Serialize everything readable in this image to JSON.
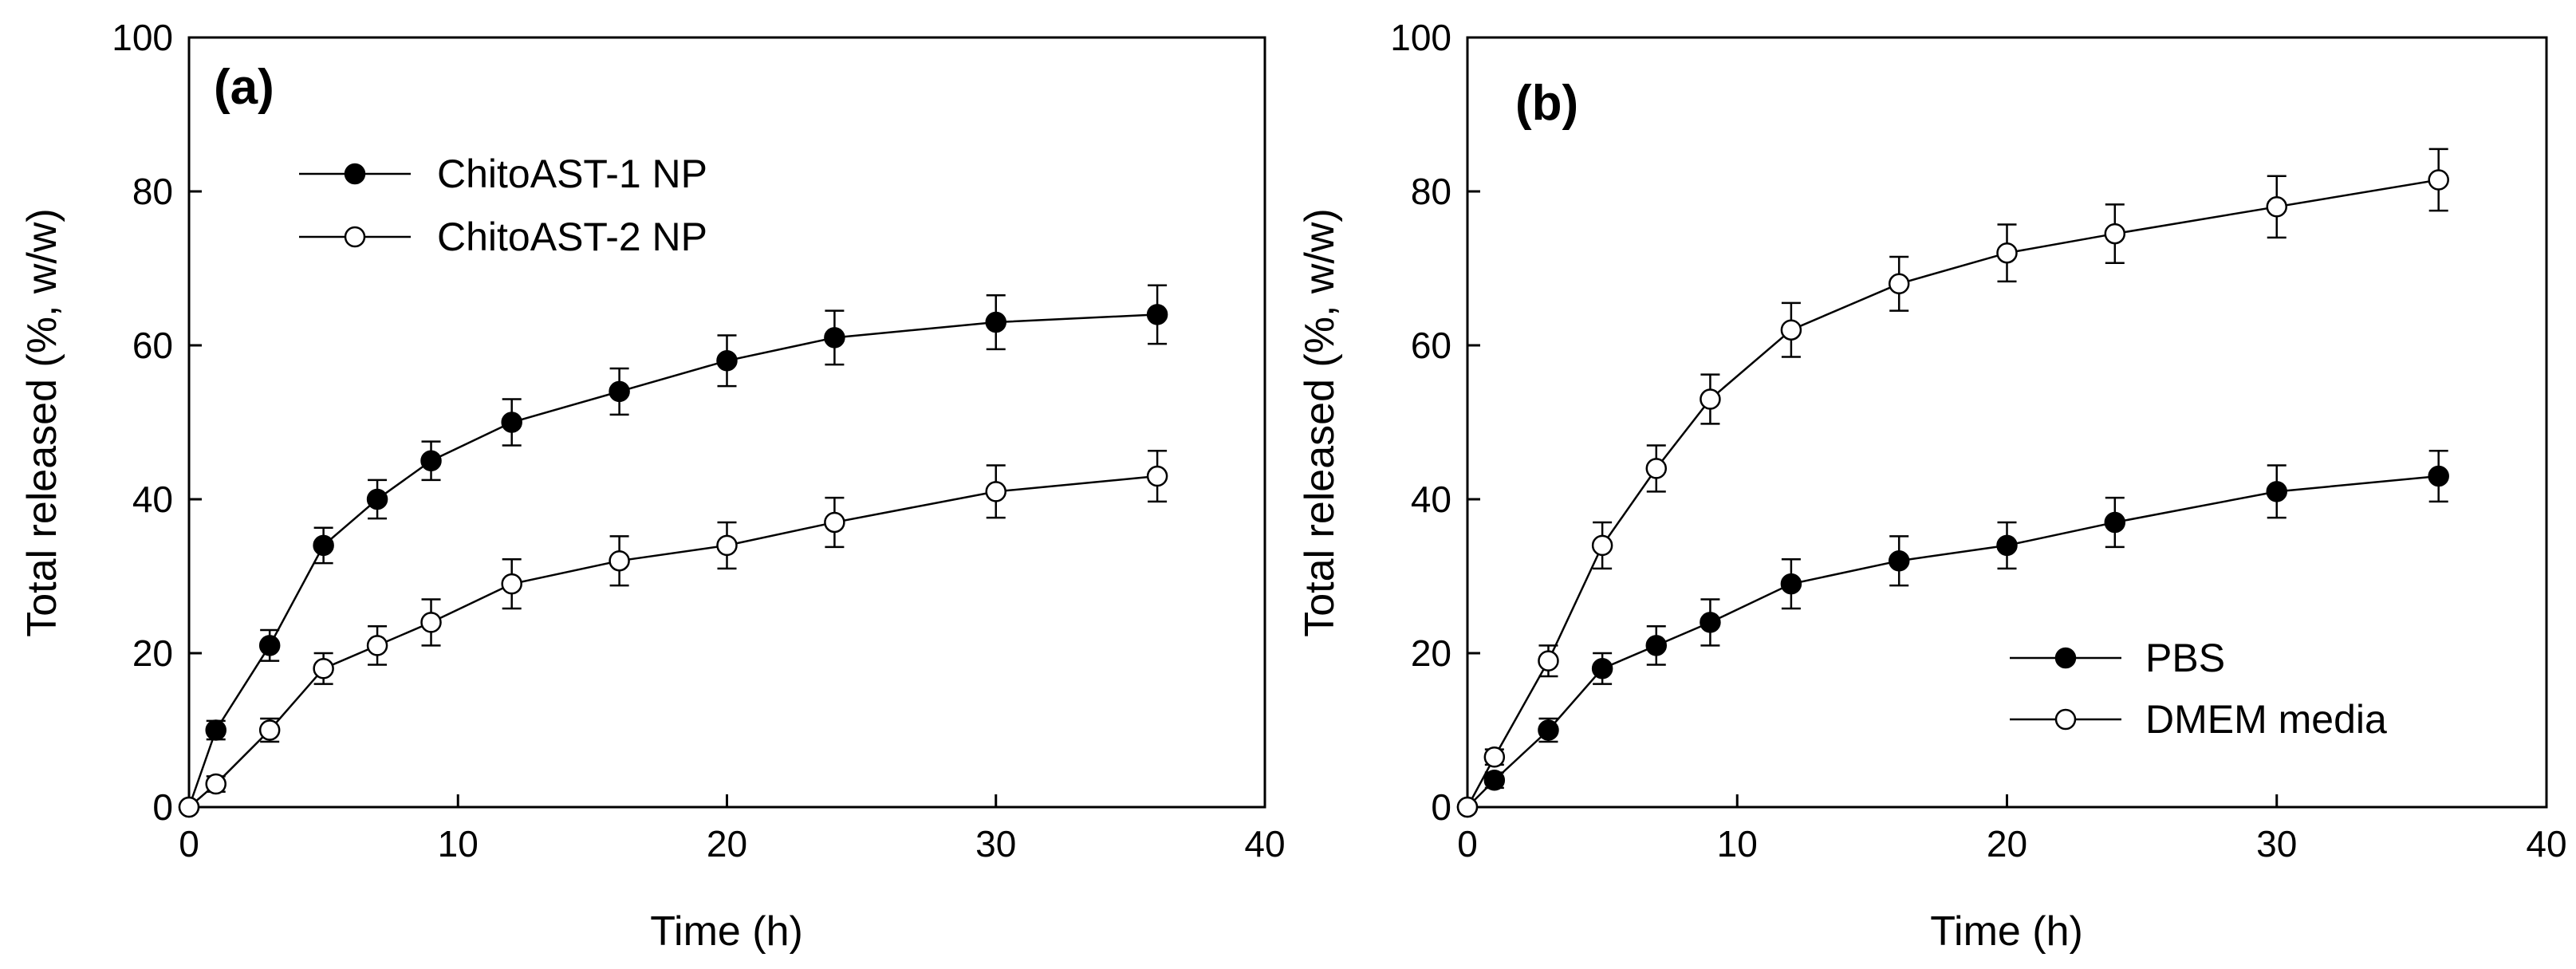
{
  "chart_data": [
    {
      "type": "line",
      "panel_label": "(a)",
      "xlabel": "Time (h)",
      "ylabel": "Total released (%, w/w)",
      "xlim": [
        0,
        40
      ],
      "ylim": [
        0,
        100
      ],
      "xticks": [
        "0",
        "10",
        "20",
        "30",
        "40"
      ],
      "yticks": [
        "0",
        "20",
        "40",
        "60",
        "80",
        "100"
      ],
      "grid": false,
      "legend_position": "top-left",
      "x": [
        0,
        1,
        3,
        5,
        7,
        9,
        12,
        16,
        20,
        24,
        30,
        36
      ],
      "series": [
        {
          "name": "ChitoAST-1 NP",
          "marker": "filled-circle",
          "color": "#000000",
          "values": [
            0,
            10,
            21,
            34,
            40,
            45,
            50,
            54,
            58,
            61,
            63,
            64
          ],
          "errors": [
            0,
            1.2,
            2,
            2.3,
            2.5,
            2.5,
            3,
            3,
            3.3,
            3.5,
            3.5,
            3.8
          ]
        },
        {
          "name": "ChitoAST-2 NP",
          "marker": "open-circle",
          "color": "#000000",
          "values": [
            0,
            3,
            10,
            18,
            21,
            24,
            29,
            32,
            34,
            37,
            41,
            43
          ],
          "errors": [
            0,
            1,
            1.5,
            2,
            2.5,
            3,
            3.2,
            3.2,
            3,
            3.2,
            3.4,
            3.3
          ]
        }
      ]
    },
    {
      "type": "line",
      "panel_label": "(b)",
      "xlabel": "Time (h)",
      "ylabel": "Total released (%, w/w)",
      "xlim": [
        0,
        40
      ],
      "ylim": [
        0,
        100
      ],
      "xticks": [
        "0",
        "10",
        "20",
        "30",
        "40"
      ],
      "yticks": [
        "0",
        "20",
        "40",
        "60",
        "80",
        "100"
      ],
      "grid": false,
      "legend_position": "bottom-right",
      "x": [
        0,
        1,
        3,
        5,
        7,
        9,
        12,
        16,
        20,
        24,
        30,
        36
      ],
      "series": [
        {
          "name": "PBS",
          "marker": "filled-circle",
          "color": "#000000",
          "values": [
            0,
            3.5,
            10,
            18,
            21,
            24,
            29,
            32,
            34,
            37,
            41,
            43
          ],
          "errors": [
            0,
            1,
            1.5,
            2,
            2.5,
            3,
            3.2,
            3.2,
            3,
            3.2,
            3.4,
            3.3
          ]
        },
        {
          "name": "DMEM media",
          "marker": "open-circle",
          "color": "#000000",
          "values": [
            0,
            6.5,
            19,
            34,
            44,
            53,
            62,
            68,
            72,
            74.5,
            78,
            81.5
          ],
          "errors": [
            0,
            1,
            2,
            3,
            3,
            3.2,
            3.5,
            3.5,
            3.7,
            3.8,
            4,
            4
          ]
        }
      ]
    }
  ]
}
